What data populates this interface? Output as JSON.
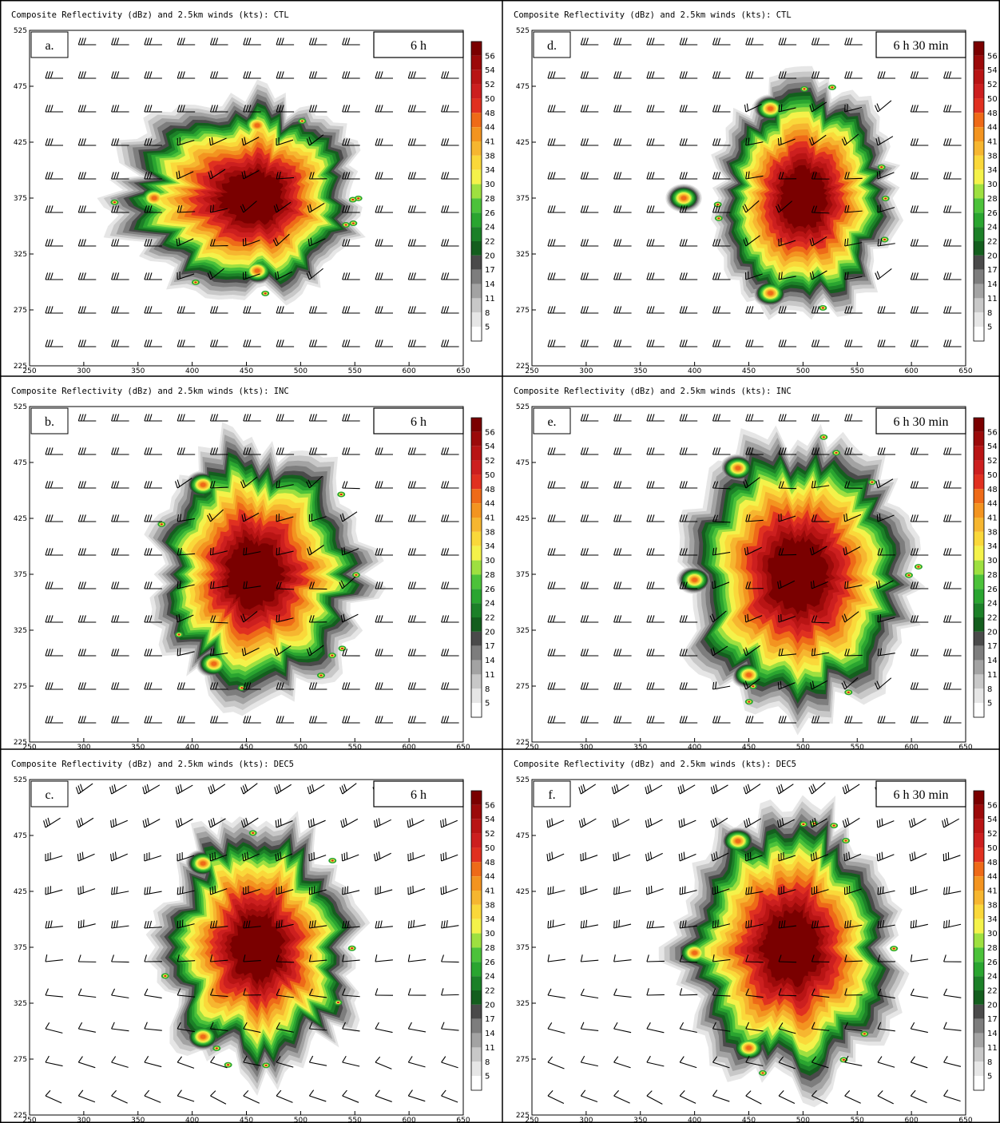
{
  "chart_data": [
    {
      "id": "a",
      "type": "heatmap",
      "panel_label": "a.",
      "time_label": "6 h",
      "title": "Composite Reflectivity (dBz) and 2.5km winds (kts): CTL",
      "x_ticks": [
        "250",
        "300",
        "350",
        "400",
        "450",
        "500",
        "550",
        "600",
        "650"
      ],
      "y_ticks": [
        "525",
        "475",
        "425",
        "375",
        "325",
        "275",
        "225"
      ],
      "xlim": [
        250,
        650
      ],
      "ylim": [
        225,
        525
      ],
      "storm": {
        "center": [
          460,
          375
        ],
        "rx": [
          -110,
          78
        ],
        "ry": [
          75,
          75
        ],
        "lobes": [
          [
            460,
            440
          ],
          [
            460,
            310
          ],
          [
            365,
            375
          ]
        ],
        "wind_style": "westerly"
      }
    },
    {
      "id": "d",
      "type": "heatmap",
      "panel_label": "d.",
      "time_label": "6 h 30 min",
      "title": "Composite Reflectivity (dBz) and 2.5km winds (kts): CTL",
      "x_ticks": [
        "250",
        "300",
        "350",
        "400",
        "450",
        "500",
        "550",
        "600",
        "650"
      ],
      "y_ticks": [
        "525",
        "475",
        "425",
        "375",
        "325",
        "275",
        "225"
      ],
      "xlim": [
        250,
        650
      ],
      "ylim": [
        225,
        525
      ],
      "storm": {
        "center": [
          500,
          375
        ],
        "rx": [
          -70,
          72
        ],
        "ry": [
          88,
          88
        ],
        "lobes": [
          [
            390,
            375
          ],
          [
            470,
            455
          ],
          [
            470,
            290
          ]
        ],
        "wind_style": "westerly"
      }
    },
    {
      "id": "b",
      "type": "heatmap",
      "panel_label": "b.",
      "time_label": "6 h",
      "title": "Composite Reflectivity (dBz) and 2.5km winds (kts): INC",
      "x_ticks": [
        "250",
        "300",
        "350",
        "400",
        "450",
        "500",
        "550",
        "600",
        "650"
      ],
      "y_ticks": [
        "525",
        "475",
        "425",
        "375",
        "325",
        "275",
        "225"
      ],
      "xlim": [
        250,
        650
      ],
      "ylim": [
        225,
        525
      ],
      "storm": {
        "center": [
          455,
          375
        ],
        "rx": [
          -75,
          90
        ],
        "ry": [
          100,
          95
        ],
        "lobes": [
          [
            410,
            455
          ],
          [
            420,
            295
          ]
        ],
        "wind_style": "westerly"
      }
    },
    {
      "id": "e",
      "type": "heatmap",
      "panel_label": "e.",
      "time_label": "6 h 30 min",
      "title": "Composite Reflectivity (dBz) and 2.5km winds (kts): INC",
      "x_ticks": [
        "250",
        "300",
        "350",
        "400",
        "450",
        "500",
        "550",
        "600",
        "650"
      ],
      "y_ticks": [
        "525",
        "475",
        "425",
        "375",
        "325",
        "275",
        "225"
      ],
      "xlim": [
        250,
        650
      ],
      "ylim": [
        225,
        525
      ],
      "storm": {
        "center": [
          495,
          375
        ],
        "rx": [
          -90,
          95
        ],
        "ry": [
          105,
          105
        ],
        "lobes": [
          [
            400,
            370
          ],
          [
            440,
            470
          ],
          [
            450,
            285
          ]
        ],
        "wind_style": "westerly"
      }
    },
    {
      "id": "c",
      "type": "heatmap",
      "panel_label": "c.",
      "time_label": "6 h",
      "title": "Composite Reflectivity (dBz) and 2.5km winds (kts): DEC5",
      "x_ticks": [
        "250",
        "300",
        "350",
        "400",
        "450",
        "500",
        "550",
        "600",
        "650"
      ],
      "y_ticks": [
        "525",
        "475",
        "425",
        "375",
        "325",
        "275",
        "225"
      ],
      "xlim": [
        250,
        650
      ],
      "ylim": [
        225,
        525
      ],
      "storm": {
        "center": [
          460,
          375
        ],
        "rx": [
          -75,
          80
        ],
        "ry": [
          95,
          95
        ],
        "lobes": [
          [
            410,
            450
          ],
          [
            410,
            295
          ]
        ],
        "wind_style": "veering"
      }
    },
    {
      "id": "f",
      "type": "heatmap",
      "panel_label": "f.",
      "time_label": "6 h 30 min",
      "title": "Composite Reflectivity (dBz) and 2.5km winds (kts): DEC5",
      "x_ticks": [
        "250",
        "300",
        "350",
        "400",
        "450",
        "500",
        "550",
        "600",
        "650"
      ],
      "y_ticks": [
        "525",
        "475",
        "425",
        "375",
        "325",
        "275",
        "225"
      ],
      "xlim": [
        250,
        650
      ],
      "ylim": [
        225,
        525
      ],
      "storm": {
        "center": [
          490,
          375
        ],
        "rx": [
          -90,
          85
        ],
        "ry": [
          105,
          105
        ],
        "lobes": [
          [
            400,
            370
          ],
          [
            440,
            470
          ],
          [
            450,
            285
          ]
        ],
        "wind_style": "veering"
      }
    }
  ],
  "colorbar": {
    "levels": [
      "56",
      "54",
      "52",
      "50",
      "48",
      "44",
      "41",
      "38",
      "34",
      "30",
      "28",
      "26",
      "24",
      "22",
      "20",
      "17",
      "14",
      "11",
      "8",
      "5"
    ],
    "colors": [
      "#7a0000",
      "#9b0a0a",
      "#b81414",
      "#cc1f1f",
      "#e03020",
      "#ee6a18",
      "#f39420",
      "#f6b630",
      "#fad83a",
      "#f4f24a",
      "#9ee040",
      "#4cc23a",
      "#2aa530",
      "#1c8028",
      "#145e1e",
      "#4a4a4a",
      "#7d7d7d",
      "#a3a3a3",
      "#c8c8c8",
      "#e6e6e6"
    ],
    "bottom_color": "#ffffff"
  }
}
